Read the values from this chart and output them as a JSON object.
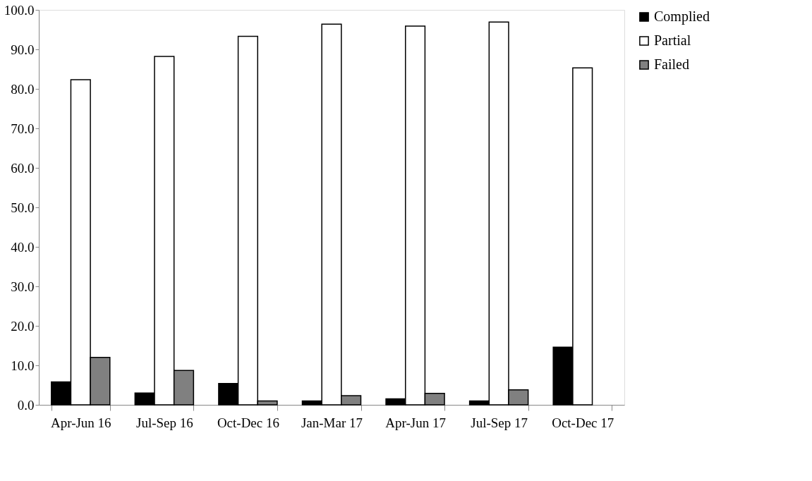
{
  "chart_data": {
    "type": "bar",
    "categories": [
      "Apr-Jun 16",
      "Jul-Sep 16",
      "Oct-Dec 16",
      "Jan-Mar 17",
      "Apr-Jun 17",
      "Jul-Sep 17",
      "Oct-Dec 17"
    ],
    "series": [
      {
        "name": "Complied",
        "color": "#000000",
        "values": [
          5.8,
          3.0,
          5.4,
          1.0,
          1.5,
          1.0,
          14.6
        ]
      },
      {
        "name": "Partial",
        "color": "#ffffff",
        "values": [
          82.3,
          88.2,
          93.3,
          96.4,
          95.9,
          96.9,
          85.3
        ]
      },
      {
        "name": "Failed",
        "color": "#808080",
        "values": [
          12.0,
          8.7,
          1.0,
          2.3,
          2.9,
          3.8,
          null
        ]
      }
    ],
    "ylim": [
      0,
      100
    ],
    "yticks": [
      {
        "value": 0,
        "label": "0.0"
      },
      {
        "value": 10,
        "label": "10.0"
      },
      {
        "value": 20,
        "label": "20.0"
      },
      {
        "value": 30,
        "label": "30.0"
      },
      {
        "value": 40,
        "label": "40.0"
      },
      {
        "value": 50,
        "label": "50.0"
      },
      {
        "value": 60,
        "label": "60.0"
      },
      {
        "value": 70,
        "label": "70.0"
      },
      {
        "value": 80,
        "label": "80.0"
      },
      {
        "value": 90,
        "label": "90.0"
      },
      {
        "value": 100,
        "label": "100.0"
      }
    ],
    "grid": false,
    "legend": "right"
  }
}
